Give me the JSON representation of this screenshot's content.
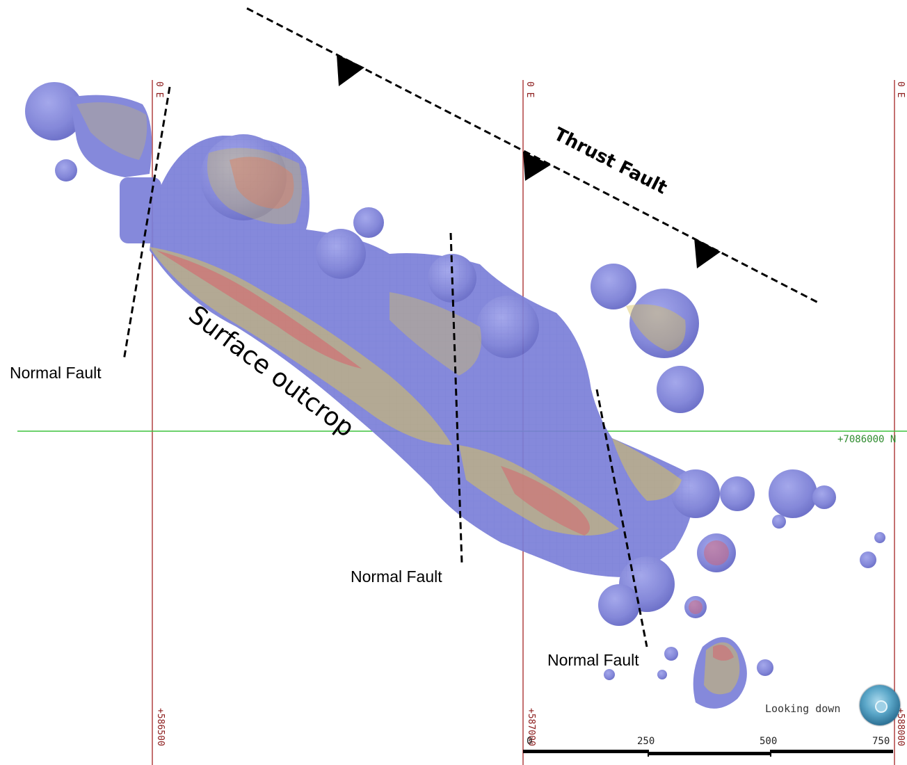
{
  "map": {
    "labels": {
      "thrust_fault": "Thrust Fault",
      "surface_outcrop": "Surface outcrop",
      "normal_fault_1": "Normal Fault",
      "normal_fault_2": "Normal Fault",
      "normal_fault_3": "Normal Fault"
    },
    "grid": {
      "easting_lines": [
        "+586500",
        "+587000",
        "+588000"
      ],
      "easting_top_suffix": "0 E",
      "northing_line": "+7086000 N"
    },
    "scale_bar": {
      "ticks": [
        "0",
        "250",
        "500",
        "750"
      ]
    },
    "view": {
      "label": "Looking down",
      "icon": "compass-icon"
    },
    "colors": {
      "body_blue": "#7b7fd8",
      "hot_red": "#d9606a",
      "warm_yellow": "#d8c25a",
      "easting_line": "#b04040",
      "northing_line": "#3cc23c"
    }
  }
}
